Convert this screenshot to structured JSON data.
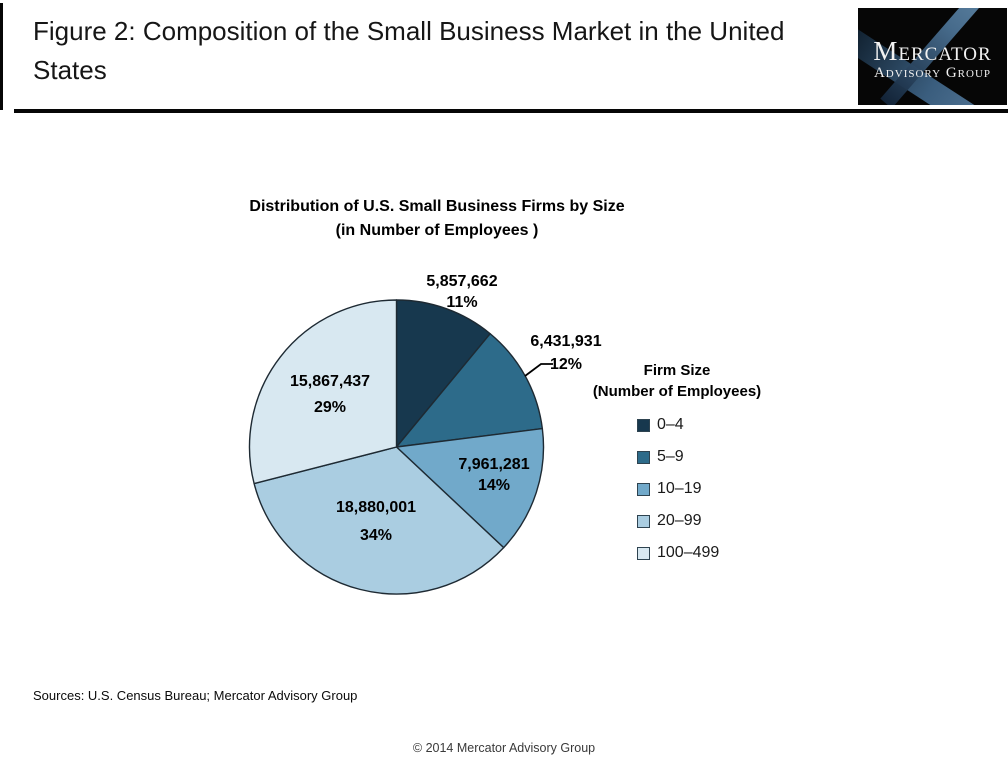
{
  "header": {
    "title": "Figure 2: Composition of the Small Business Market in the United States",
    "logo": {
      "line1": "Mercator",
      "line2": "Advisory Group"
    }
  },
  "chart_data": {
    "type": "pie",
    "title": "Distribution of U.S. Small Business Firms by Size",
    "subtitle": "(in Number of Employees )",
    "legend_title": "Firm Size",
    "legend_subtitle": "(Number of Employees)",
    "legend_position": "right",
    "start_angle": "12 o'clock, clockwise",
    "outline_color": "#1e2a33",
    "slices": [
      {
        "label": "0–4",
        "value": 5857662,
        "value_label": "5,857,662",
        "pct": 11,
        "pct_label": "11%",
        "color": "#17384E"
      },
      {
        "label": "5–9",
        "value": 6431931,
        "value_label": "6,431,931",
        "pct": 12,
        "pct_label": "12%",
        "color": "#2D6B8A"
      },
      {
        "label": "10–19",
        "value": 7961281,
        "value_label": "7,961,281",
        "pct": 14,
        "pct_label": "14%",
        "color": "#71A9CA"
      },
      {
        "label": "20–99",
        "value": 18880001,
        "value_label": "18,880,001",
        "pct": 34,
        "pct_label": "34%",
        "color": "#AACDE1"
      },
      {
        "label": "100–499",
        "value": 15867437,
        "value_label": "15,867,437",
        "pct": 29,
        "pct_label": "29%",
        "color": "#D8E8F1"
      }
    ]
  },
  "footer": {
    "sources": "Sources: U.S. Census Bureau; Mercator Advisory Group",
    "copyright": "© 2014 Mercator Advisory Group"
  }
}
